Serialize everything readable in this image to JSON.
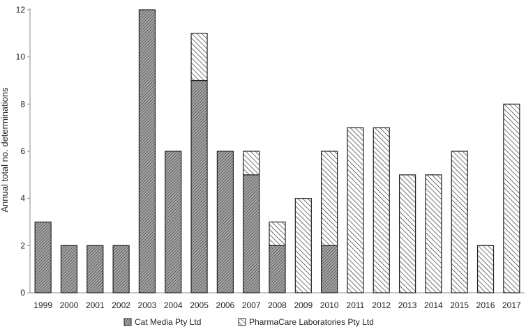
{
  "chart_data": {
    "type": "bar",
    "stacked": true,
    "categories": [
      "1999",
      "2000",
      "2001",
      "2002",
      "2003",
      "2004",
      "2005",
      "2006",
      "2007",
      "2008",
      "2009",
      "2010",
      "2011",
      "2012",
      "2013",
      "2014",
      "2015",
      "2016",
      "2017"
    ],
    "series": [
      {
        "name": "Cat Media Pty Ltd",
        "values": [
          3,
          2,
          2,
          2,
          12,
          6,
          9,
          6,
          5,
          2,
          0,
          2,
          0,
          0,
          0,
          0,
          0,
          0,
          0
        ],
        "pattern": "dense-hatch",
        "color": "#8c8c8c"
      },
      {
        "name": "PharmaCare Laboratories Pty Ltd",
        "values": [
          0,
          0,
          0,
          0,
          0,
          0,
          2,
          0,
          1,
          1,
          4,
          4,
          7,
          7,
          5,
          5,
          6,
          2,
          8
        ],
        "pattern": "sparse-hatch",
        "color": "#ffffff"
      }
    ],
    "ylabel": "Annual total no. determinations",
    "xlabel": "",
    "ylim": [
      0,
      12
    ],
    "yticks": [
      0,
      2,
      4,
      6,
      8,
      10,
      12
    ],
    "grid": false,
    "legend_position": "bottom"
  }
}
